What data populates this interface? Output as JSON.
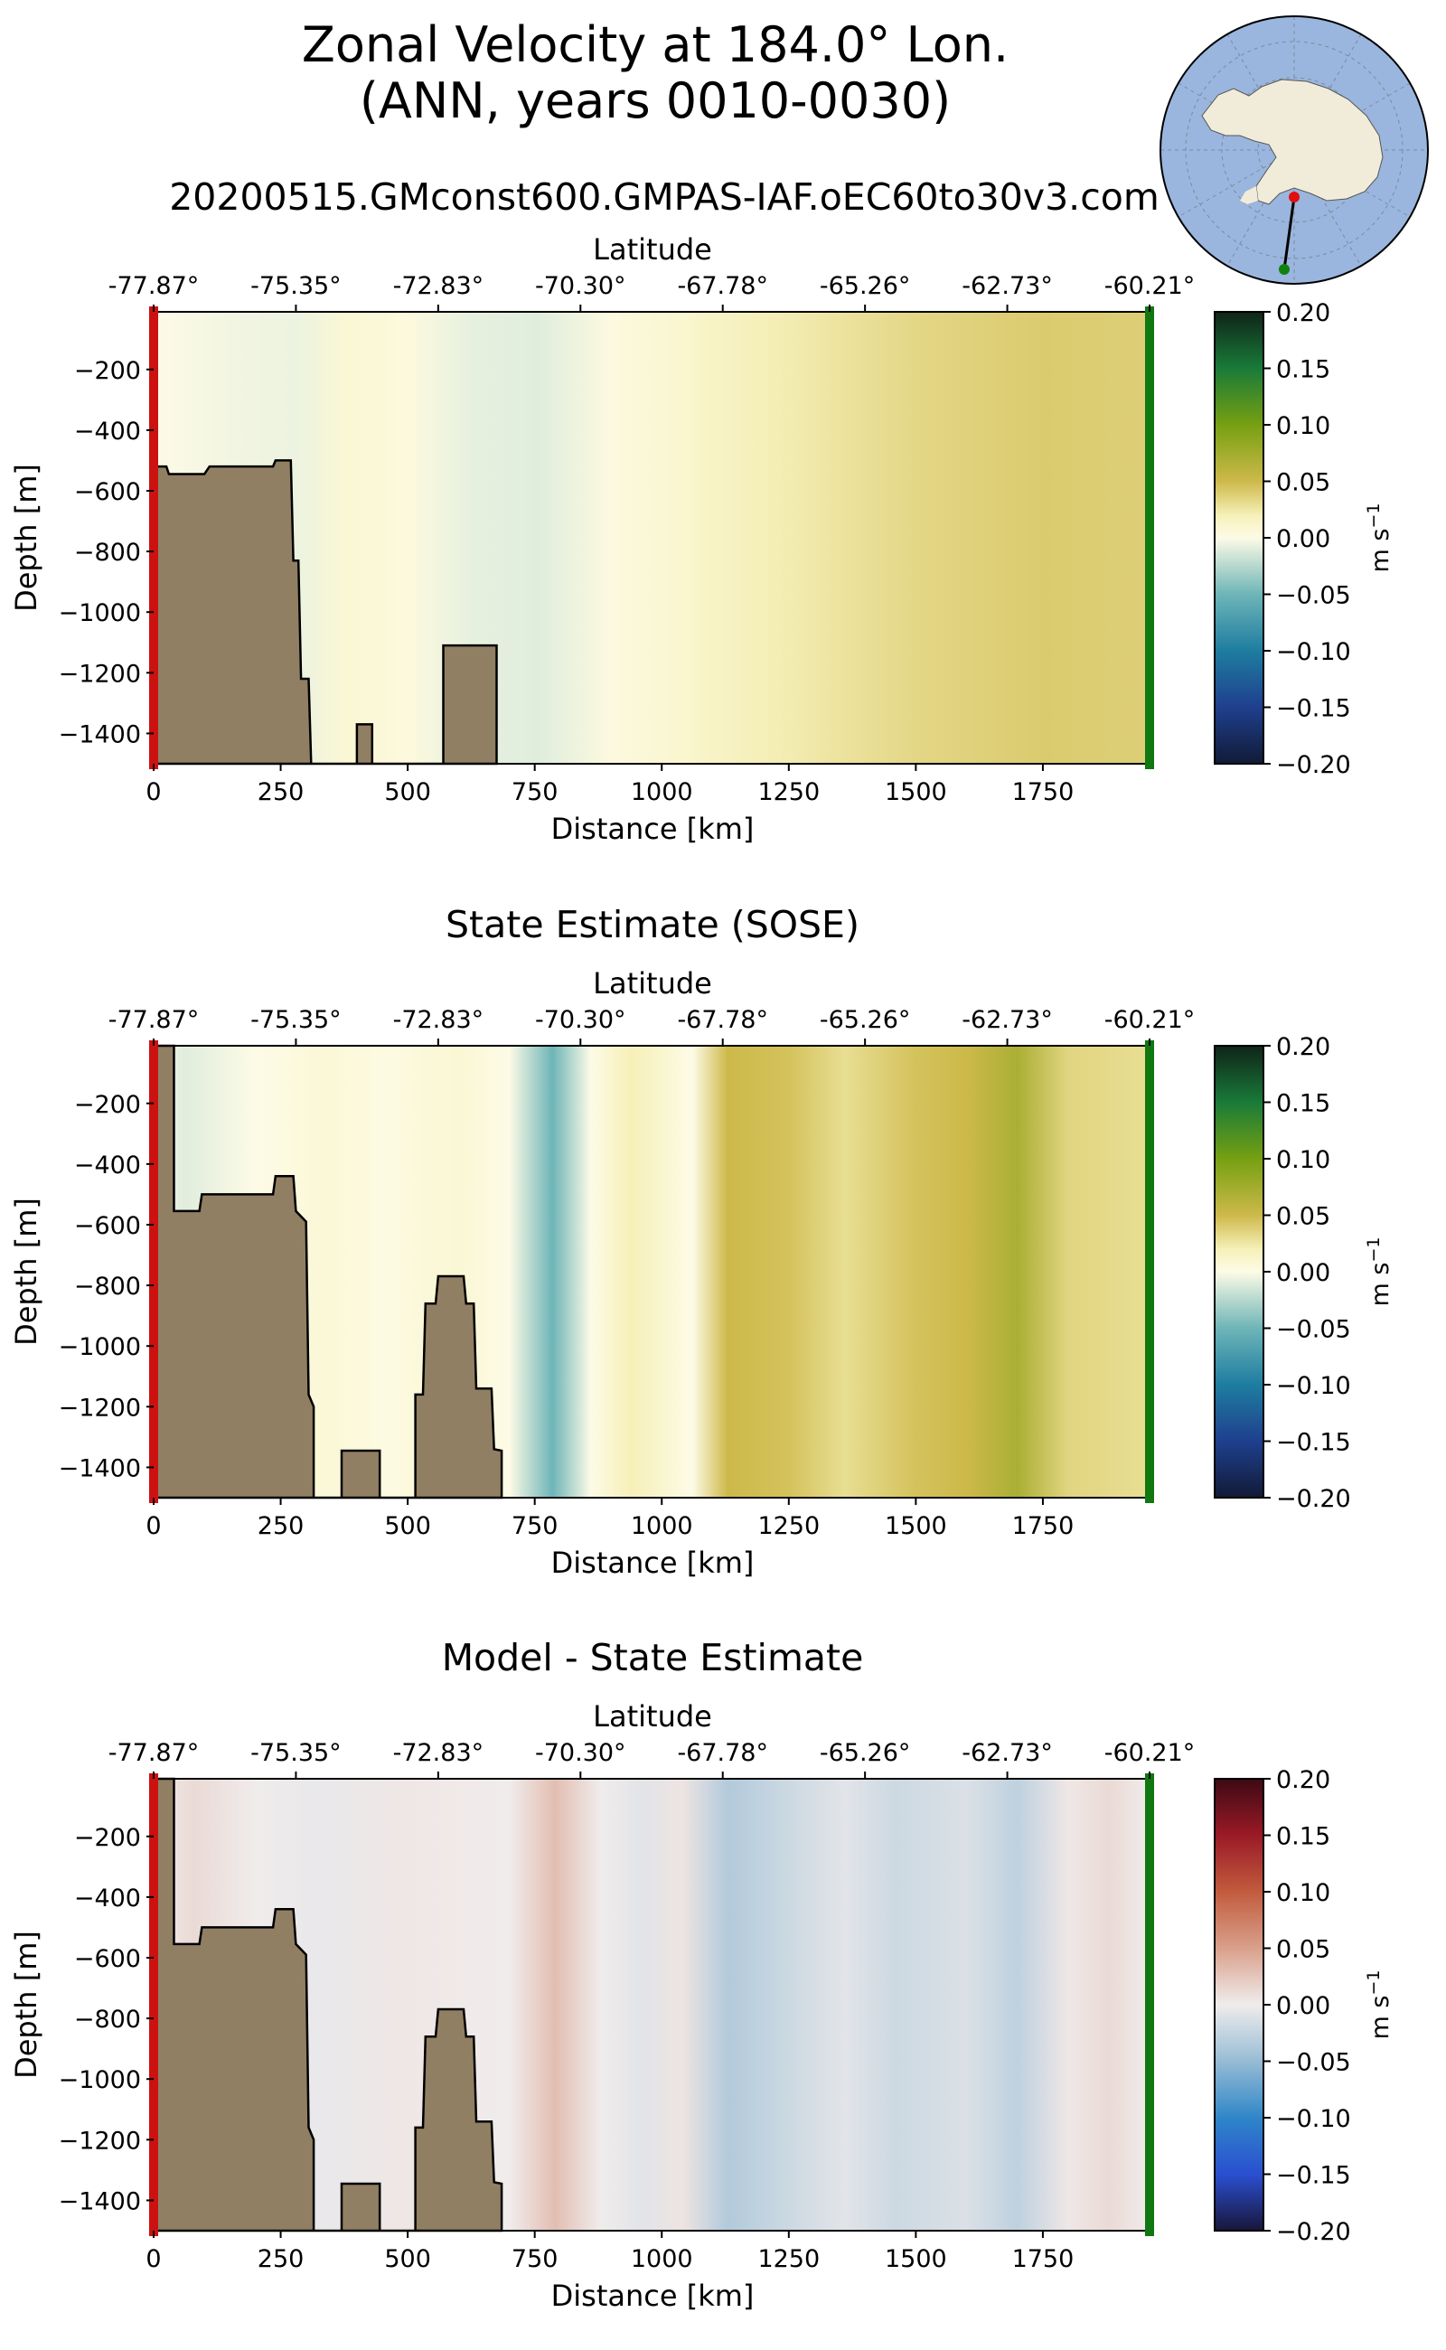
{
  "figure": {
    "title_line1": "Zonal Velocity at 184.0° Lon.",
    "title_line2": "(ANN, years 0010-0030)",
    "run_name": "20200515.GMconst600.GMPAS-IAF.oEC60to30v3.com"
  },
  "colors": {
    "land": "#917f63",
    "start_marker": "#cc1111",
    "end_marker": "#117711",
    "inset_ocean": "#9ab6de",
    "inset_land": "#f1ecda",
    "inset_start_dot": "#e01010",
    "inset_end_dot": "#108010"
  },
  "chart_data": [
    {
      "type": "heatmap",
      "title": "",
      "xlabel": "Distance [km]",
      "ylabel": "Depth [m]",
      "top_xlabel": "Latitude",
      "xlim": [
        0,
        1960
      ],
      "ylim": [
        -1500,
        -10
      ],
      "xticks": [
        "0",
        "250",
        "500",
        "750",
        "1000",
        "1250",
        "1500",
        "1750"
      ],
      "xtick_values": [
        0,
        250,
        500,
        750,
        1000,
        1250,
        1500,
        1750
      ],
      "yticks": [
        "−200",
        "−400",
        "−600",
        "−800",
        "−1000",
        "−1200",
        "−1400"
      ],
      "ytick_values": [
        -200,
        -400,
        -600,
        -800,
        -1000,
        -1200,
        -1400
      ],
      "lat_ticks": [
        "-77.87°",
        "-75.35°",
        "-72.83°",
        "-70.30°",
        "-67.78°",
        "-65.26°",
        "-62.73°",
        "-60.21°"
      ],
      "lat_tick_distances": [
        0,
        280,
        560,
        840,
        1120,
        1400,
        1680,
        1960
      ],
      "colorbar": {
        "label": "m s",
        "label_exp": "−1",
        "ticks": [
          "−0.20",
          "−0.15",
          "−0.10",
          "−0.05",
          "0.00",
          "0.05",
          "0.10",
          "0.15",
          "0.20"
        ],
        "tick_values": [
          -0.2,
          -0.15,
          -0.1,
          -0.05,
          0,
          0.05,
          0.1,
          0.15,
          0.2
        ],
        "colormap": "delta"
      },
      "velocity_columns": [
        {
          "x": 0,
          "v": 0.0
        },
        {
          "x": 150,
          "v": -0.004
        },
        {
          "x": 280,
          "v": -0.006
        },
        {
          "x": 380,
          "v": 0.008
        },
        {
          "x": 500,
          "v": 0.004
        },
        {
          "x": 630,
          "v": -0.008
        },
        {
          "x": 760,
          "v": -0.01
        },
        {
          "x": 900,
          "v": 0.003
        },
        {
          "x": 1040,
          "v": 0.01
        },
        {
          "x": 1250,
          "v": 0.022
        },
        {
          "x": 1500,
          "v": 0.034
        },
        {
          "x": 1750,
          "v": 0.04
        },
        {
          "x": 1960,
          "v": 0.038
        }
      ],
      "bathymetry": [
        [
          0,
          -520
        ],
        [
          25,
          -520
        ],
        [
          30,
          -545
        ],
        [
          100,
          -545
        ],
        [
          110,
          -520
        ],
        [
          235,
          -520
        ],
        [
          240,
          -500
        ],
        [
          270,
          -500
        ],
        [
          275,
          -830
        ],
        [
          285,
          -830
        ],
        [
          290,
          -1220
        ],
        [
          305,
          -1220
        ],
        [
          310,
          -1500
        ],
        [
          400,
          -1500
        ],
        [
          400,
          -1370
        ],
        [
          430,
          -1370
        ],
        [
          430,
          -1500
        ],
        [
          570,
          -1500
        ],
        [
          570,
          -1110
        ],
        [
          675,
          -1110
        ],
        [
          675,
          -1500
        ]
      ]
    },
    {
      "type": "heatmap",
      "title": "State Estimate (SOSE)",
      "xlabel": "Distance [km]",
      "ylabel": "Depth [m]",
      "top_xlabel": "Latitude",
      "xlim": [
        0,
        1960
      ],
      "ylim": [
        -1500,
        -10
      ],
      "xticks": [
        "0",
        "250",
        "500",
        "750",
        "1000",
        "1250",
        "1500",
        "1750"
      ],
      "xtick_values": [
        0,
        250,
        500,
        750,
        1000,
        1250,
        1500,
        1750
      ],
      "yticks": [
        "−200",
        "−400",
        "−600",
        "−800",
        "−1000",
        "−1200",
        "−1400"
      ],
      "ytick_values": [
        -200,
        -400,
        -600,
        -800,
        -1000,
        -1200,
        -1400
      ],
      "lat_ticks": [
        "-77.87°",
        "-75.35°",
        "-72.83°",
        "-70.30°",
        "-67.78°",
        "-65.26°",
        "-62.73°",
        "-60.21°"
      ],
      "lat_tick_distances": [
        0,
        280,
        560,
        840,
        1120,
        1400,
        1680,
        1960
      ],
      "colorbar": {
        "label": "m s",
        "label_exp": "−1",
        "ticks": [
          "−0.20",
          "−0.15",
          "−0.10",
          "−0.05",
          "0.00",
          "0.05",
          "0.10",
          "0.15",
          "0.20"
        ],
        "tick_values": [
          -0.2,
          -0.15,
          -0.1,
          -0.05,
          0,
          0.05,
          0.1,
          0.15,
          0.2
        ],
        "colormap": "delta"
      },
      "velocity_columns": [
        {
          "x": 0,
          "v": 0.0
        },
        {
          "x": 60,
          "v": -0.01
        },
        {
          "x": 200,
          "v": 0.0
        },
        {
          "x": 330,
          "v": 0.006
        },
        {
          "x": 460,
          "v": 0.002
        },
        {
          "x": 600,
          "v": 0.008
        },
        {
          "x": 700,
          "v": 0.0
        },
        {
          "x": 785,
          "v": -0.05
        },
        {
          "x": 860,
          "v": 0.0
        },
        {
          "x": 940,
          "v": 0.02
        },
        {
          "x": 1060,
          "v": 0.0
        },
        {
          "x": 1130,
          "v": 0.05
        },
        {
          "x": 1250,
          "v": 0.045
        },
        {
          "x": 1360,
          "v": 0.03
        },
        {
          "x": 1500,
          "v": 0.045
        },
        {
          "x": 1600,
          "v": 0.05
        },
        {
          "x": 1700,
          "v": 0.07
        },
        {
          "x": 1800,
          "v": 0.035
        },
        {
          "x": 1960,
          "v": 0.03
        }
      ],
      "bathymetry": [
        [
          0,
          -1500
        ],
        [
          0,
          -10
        ],
        [
          40,
          -10
        ],
        [
          40,
          -555
        ],
        [
          90,
          -555
        ],
        [
          95,
          -500
        ],
        [
          235,
          -500
        ],
        [
          240,
          -440
        ],
        [
          275,
          -440
        ],
        [
          280,
          -555
        ],
        [
          300,
          -590
        ],
        [
          305,
          -1160
        ],
        [
          315,
          -1200
        ],
        [
          315,
          -1500
        ],
        [
          370,
          -1500
        ],
        [
          370,
          -1345
        ],
        [
          445,
          -1345
        ],
        [
          445,
          -1500
        ],
        [
          515,
          -1500
        ],
        [
          515,
          -1160
        ],
        [
          530,
          -1160
        ],
        [
          535,
          -860
        ],
        [
          555,
          -860
        ],
        [
          560,
          -770
        ],
        [
          610,
          -770
        ],
        [
          615,
          -860
        ],
        [
          630,
          -860
        ],
        [
          635,
          -1140
        ],
        [
          665,
          -1140
        ],
        [
          670,
          -1340
        ],
        [
          685,
          -1345
        ],
        [
          685,
          -1500
        ]
      ]
    },
    {
      "type": "heatmap",
      "title": "Model - State Estimate",
      "xlabel": "Distance [km]",
      "ylabel": "Depth [m]",
      "top_xlabel": "Latitude",
      "xlim": [
        0,
        1960
      ],
      "ylim": [
        -1500,
        -10
      ],
      "xticks": [
        "0",
        "250",
        "500",
        "750",
        "1000",
        "1250",
        "1500",
        "1750"
      ],
      "xtick_values": [
        0,
        250,
        500,
        750,
        1000,
        1250,
        1500,
        1750
      ],
      "yticks": [
        "−200",
        "−400",
        "−600",
        "−800",
        "−1000",
        "−1200",
        "−1400"
      ],
      "ytick_values": [
        -200,
        -400,
        -600,
        -800,
        -1000,
        -1200,
        -1400
      ],
      "lat_ticks": [
        "-77.87°",
        "-75.35°",
        "-72.83°",
        "-70.30°",
        "-67.78°",
        "-65.26°",
        "-62.73°",
        "-60.21°"
      ],
      "lat_tick_distances": [
        0,
        280,
        560,
        840,
        1120,
        1400,
        1680,
        1960
      ],
      "colorbar": {
        "label": "m s",
        "label_exp": "−1",
        "ticks": [
          "−0.20",
          "−0.15",
          "−0.10",
          "−0.05",
          "0.00",
          "0.05",
          "0.10",
          "0.15",
          "0.20"
        ],
        "tick_values": [
          -0.2,
          -0.15,
          -0.1,
          -0.05,
          0,
          0.05,
          0.1,
          0.15,
          0.2
        ],
        "colormap": "balance"
      },
      "velocity_columns": [
        {
          "x": 0,
          "v": 0.0
        },
        {
          "x": 80,
          "v": 0.012
        },
        {
          "x": 200,
          "v": 0.0
        },
        {
          "x": 320,
          "v": -0.004
        },
        {
          "x": 500,
          "v": 0.003
        },
        {
          "x": 700,
          "v": 0.0
        },
        {
          "x": 790,
          "v": 0.03
        },
        {
          "x": 880,
          "v": 0.0
        },
        {
          "x": 960,
          "v": -0.008
        },
        {
          "x": 1040,
          "v": 0.005
        },
        {
          "x": 1130,
          "v": -0.035
        },
        {
          "x": 1250,
          "v": -0.02
        },
        {
          "x": 1360,
          "v": -0.008
        },
        {
          "x": 1460,
          "v": -0.02
        },
        {
          "x": 1600,
          "v": -0.012
        },
        {
          "x": 1700,
          "v": -0.028
        },
        {
          "x": 1800,
          "v": 0.003
        },
        {
          "x": 1880,
          "v": 0.012
        },
        {
          "x": 1960,
          "v": 0.0
        }
      ],
      "bathymetry": [
        [
          0,
          -1500
        ],
        [
          0,
          -10
        ],
        [
          40,
          -10
        ],
        [
          40,
          -555
        ],
        [
          90,
          -555
        ],
        [
          95,
          -500
        ],
        [
          235,
          -500
        ],
        [
          240,
          -440
        ],
        [
          275,
          -440
        ],
        [
          280,
          -555
        ],
        [
          300,
          -590
        ],
        [
          305,
          -1160
        ],
        [
          315,
          -1200
        ],
        [
          315,
          -1500
        ],
        [
          370,
          -1500
        ],
        [
          370,
          -1345
        ],
        [
          445,
          -1345
        ],
        [
          445,
          -1500
        ],
        [
          515,
          -1500
        ],
        [
          515,
          -1160
        ],
        [
          530,
          -1160
        ],
        [
          535,
          -860
        ],
        [
          555,
          -860
        ],
        [
          560,
          -770
        ],
        [
          610,
          -770
        ],
        [
          615,
          -860
        ],
        [
          630,
          -860
        ],
        [
          635,
          -1140
        ],
        [
          665,
          -1140
        ],
        [
          670,
          -1340
        ],
        [
          685,
          -1345
        ],
        [
          685,
          -1500
        ]
      ]
    }
  ]
}
